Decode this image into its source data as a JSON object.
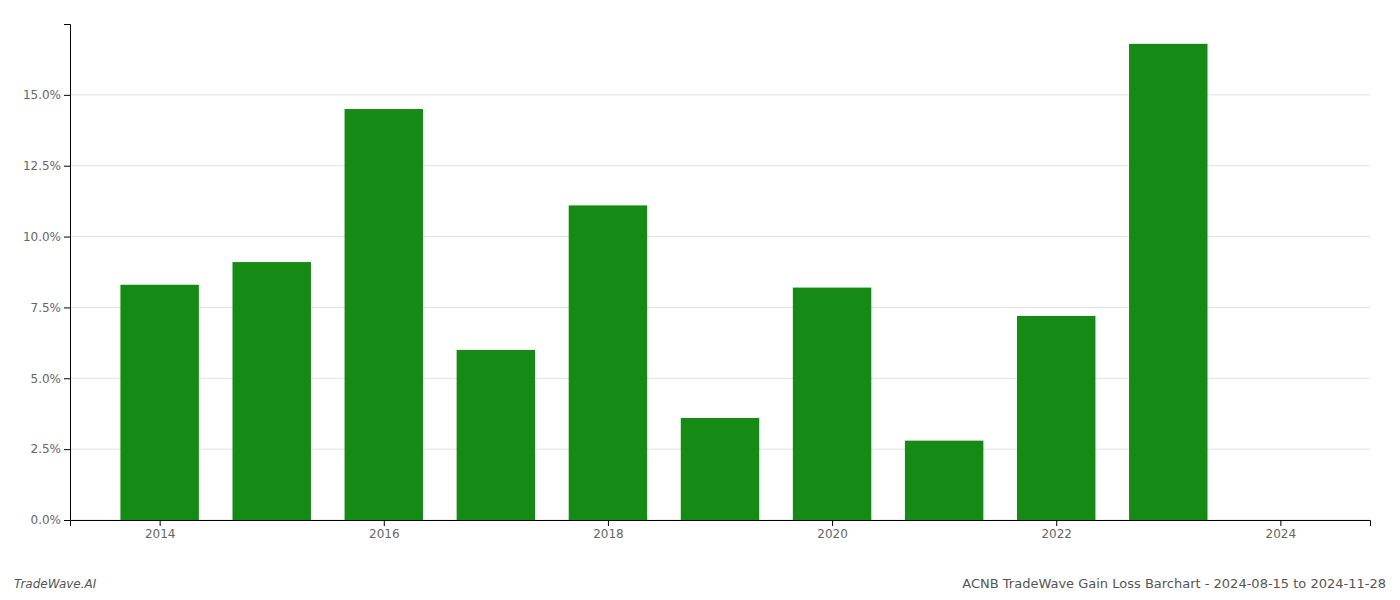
{
  "chart_data": {
    "type": "bar",
    "title": "ACNB TradeWave Gain Loss Barchart - 2024-08-15 to 2024-11-28",
    "annotations": [
      "TradeWave.AI"
    ],
    "x": [
      2014,
      2015,
      2016,
      2017,
      2018,
      2019,
      2020,
      2021,
      2022,
      2023
    ],
    "values": [
      0.083,
      0.091,
      0.145,
      0.06,
      0.111,
      0.036,
      0.082,
      0.028,
      0.072,
      0.168
    ],
    "color": "#158a15",
    "xlim": [
      2013.2,
      2024.8
    ],
    "xticks": [
      2014,
      2016,
      2018,
      2020,
      2022,
      2024
    ],
    "ylim": [
      0,
      0.175
    ],
    "yticks": [
      {
        "value": 0.0,
        "label": "0.0%"
      },
      {
        "value": 0.025,
        "label": "2.5%"
      },
      {
        "value": 0.05,
        "label": "5.0%"
      },
      {
        "value": 0.075,
        "label": "7.5%"
      },
      {
        "value": 0.1,
        "label": "10.0%"
      },
      {
        "value": 0.125,
        "label": "12.5%"
      },
      {
        "value": 0.15,
        "label": "15.0%"
      }
    ],
    "grid": true
  }
}
